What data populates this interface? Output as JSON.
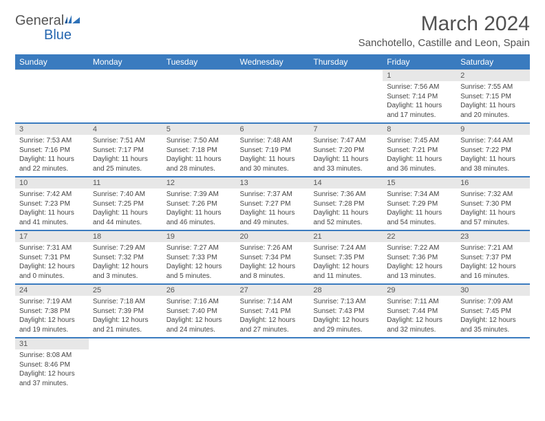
{
  "brand": {
    "name_gray": "General",
    "name_blue": "Blue"
  },
  "title": "March 2024",
  "location": "Sanchotello, Castille and Leon, Spain",
  "colors": {
    "header_bg": "#3a7bbf",
    "header_fg": "#ffffff",
    "daynum_bg": "#e7e7e7",
    "text": "#444444",
    "title_color": "#525252"
  },
  "weekdays": [
    "Sunday",
    "Monday",
    "Tuesday",
    "Wednesday",
    "Thursday",
    "Friday",
    "Saturday"
  ],
  "weeks": [
    [
      null,
      null,
      null,
      null,
      null,
      {
        "n": "1",
        "sr": "Sunrise: 7:56 AM",
        "ss": "Sunset: 7:14 PM",
        "d1": "Daylight: 11 hours",
        "d2": "and 17 minutes."
      },
      {
        "n": "2",
        "sr": "Sunrise: 7:55 AM",
        "ss": "Sunset: 7:15 PM",
        "d1": "Daylight: 11 hours",
        "d2": "and 20 minutes."
      }
    ],
    [
      {
        "n": "3",
        "sr": "Sunrise: 7:53 AM",
        "ss": "Sunset: 7:16 PM",
        "d1": "Daylight: 11 hours",
        "d2": "and 22 minutes."
      },
      {
        "n": "4",
        "sr": "Sunrise: 7:51 AM",
        "ss": "Sunset: 7:17 PM",
        "d1": "Daylight: 11 hours",
        "d2": "and 25 minutes."
      },
      {
        "n": "5",
        "sr": "Sunrise: 7:50 AM",
        "ss": "Sunset: 7:18 PM",
        "d1": "Daylight: 11 hours",
        "d2": "and 28 minutes."
      },
      {
        "n": "6",
        "sr": "Sunrise: 7:48 AM",
        "ss": "Sunset: 7:19 PM",
        "d1": "Daylight: 11 hours",
        "d2": "and 30 minutes."
      },
      {
        "n": "7",
        "sr": "Sunrise: 7:47 AM",
        "ss": "Sunset: 7:20 PM",
        "d1": "Daylight: 11 hours",
        "d2": "and 33 minutes."
      },
      {
        "n": "8",
        "sr": "Sunrise: 7:45 AM",
        "ss": "Sunset: 7:21 PM",
        "d1": "Daylight: 11 hours",
        "d2": "and 36 minutes."
      },
      {
        "n": "9",
        "sr": "Sunrise: 7:44 AM",
        "ss": "Sunset: 7:22 PM",
        "d1": "Daylight: 11 hours",
        "d2": "and 38 minutes."
      }
    ],
    [
      {
        "n": "10",
        "sr": "Sunrise: 7:42 AM",
        "ss": "Sunset: 7:23 PM",
        "d1": "Daylight: 11 hours",
        "d2": "and 41 minutes."
      },
      {
        "n": "11",
        "sr": "Sunrise: 7:40 AM",
        "ss": "Sunset: 7:25 PM",
        "d1": "Daylight: 11 hours",
        "d2": "and 44 minutes."
      },
      {
        "n": "12",
        "sr": "Sunrise: 7:39 AM",
        "ss": "Sunset: 7:26 PM",
        "d1": "Daylight: 11 hours",
        "d2": "and 46 minutes."
      },
      {
        "n": "13",
        "sr": "Sunrise: 7:37 AM",
        "ss": "Sunset: 7:27 PM",
        "d1": "Daylight: 11 hours",
        "d2": "and 49 minutes."
      },
      {
        "n": "14",
        "sr": "Sunrise: 7:36 AM",
        "ss": "Sunset: 7:28 PM",
        "d1": "Daylight: 11 hours",
        "d2": "and 52 minutes."
      },
      {
        "n": "15",
        "sr": "Sunrise: 7:34 AM",
        "ss": "Sunset: 7:29 PM",
        "d1": "Daylight: 11 hours",
        "d2": "and 54 minutes."
      },
      {
        "n": "16",
        "sr": "Sunrise: 7:32 AM",
        "ss": "Sunset: 7:30 PM",
        "d1": "Daylight: 11 hours",
        "d2": "and 57 minutes."
      }
    ],
    [
      {
        "n": "17",
        "sr": "Sunrise: 7:31 AM",
        "ss": "Sunset: 7:31 PM",
        "d1": "Daylight: 12 hours",
        "d2": "and 0 minutes."
      },
      {
        "n": "18",
        "sr": "Sunrise: 7:29 AM",
        "ss": "Sunset: 7:32 PM",
        "d1": "Daylight: 12 hours",
        "d2": "and 3 minutes."
      },
      {
        "n": "19",
        "sr": "Sunrise: 7:27 AM",
        "ss": "Sunset: 7:33 PM",
        "d1": "Daylight: 12 hours",
        "d2": "and 5 minutes."
      },
      {
        "n": "20",
        "sr": "Sunrise: 7:26 AM",
        "ss": "Sunset: 7:34 PM",
        "d1": "Daylight: 12 hours",
        "d2": "and 8 minutes."
      },
      {
        "n": "21",
        "sr": "Sunrise: 7:24 AM",
        "ss": "Sunset: 7:35 PM",
        "d1": "Daylight: 12 hours",
        "d2": "and 11 minutes."
      },
      {
        "n": "22",
        "sr": "Sunrise: 7:22 AM",
        "ss": "Sunset: 7:36 PM",
        "d1": "Daylight: 12 hours",
        "d2": "and 13 minutes."
      },
      {
        "n": "23",
        "sr": "Sunrise: 7:21 AM",
        "ss": "Sunset: 7:37 PM",
        "d1": "Daylight: 12 hours",
        "d2": "and 16 minutes."
      }
    ],
    [
      {
        "n": "24",
        "sr": "Sunrise: 7:19 AM",
        "ss": "Sunset: 7:38 PM",
        "d1": "Daylight: 12 hours",
        "d2": "and 19 minutes."
      },
      {
        "n": "25",
        "sr": "Sunrise: 7:18 AM",
        "ss": "Sunset: 7:39 PM",
        "d1": "Daylight: 12 hours",
        "d2": "and 21 minutes."
      },
      {
        "n": "26",
        "sr": "Sunrise: 7:16 AM",
        "ss": "Sunset: 7:40 PM",
        "d1": "Daylight: 12 hours",
        "d2": "and 24 minutes."
      },
      {
        "n": "27",
        "sr": "Sunrise: 7:14 AM",
        "ss": "Sunset: 7:41 PM",
        "d1": "Daylight: 12 hours",
        "d2": "and 27 minutes."
      },
      {
        "n": "28",
        "sr": "Sunrise: 7:13 AM",
        "ss": "Sunset: 7:43 PM",
        "d1": "Daylight: 12 hours",
        "d2": "and 29 minutes."
      },
      {
        "n": "29",
        "sr": "Sunrise: 7:11 AM",
        "ss": "Sunset: 7:44 PM",
        "d1": "Daylight: 12 hours",
        "d2": "and 32 minutes."
      },
      {
        "n": "30",
        "sr": "Sunrise: 7:09 AM",
        "ss": "Sunset: 7:45 PM",
        "d1": "Daylight: 12 hours",
        "d2": "and 35 minutes."
      }
    ],
    [
      {
        "n": "31",
        "sr": "Sunrise: 8:08 AM",
        "ss": "Sunset: 8:46 PM",
        "d1": "Daylight: 12 hours",
        "d2": "and 37 minutes."
      },
      null,
      null,
      null,
      null,
      null,
      null
    ]
  ]
}
